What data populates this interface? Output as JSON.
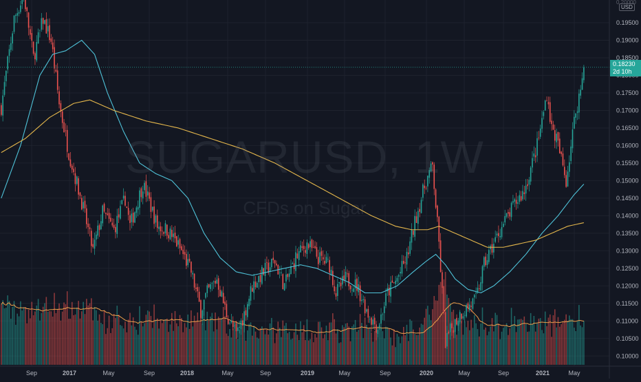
{
  "chart_data": {
    "type": "candlestick",
    "symbol": "SUGARUSD, 1W",
    "description": "CFDs on Sugar",
    "currency": "USD",
    "ylim": [
      0.0975,
      0.2005
    ],
    "y_ticks": [
      "0.19500",
      "0.19000",
      "0.18500",
      "0.18000",
      "0.17500",
      "0.17000",
      "0.16500",
      "0.16000",
      "0.15500",
      "0.15000",
      "0.14500",
      "0.14000",
      "0.13500",
      "0.13000",
      "0.12500",
      "0.12000",
      "0.11500",
      "0.11000",
      "0.10500",
      "0.10000"
    ],
    "y_top_partial": "0.20000",
    "x_ticks": [
      "Sep",
      "2017",
      "May",
      "Sep",
      "2018",
      "May",
      "Sep",
      "2019",
      "May",
      "Sep",
      "2020",
      "May",
      "Sep",
      "2021",
      "May"
    ],
    "last_price": "0.18230",
    "countdown": "2d 10h",
    "price_anchors": [
      [
        0,
        0.171
      ],
      [
        8,
        0.196
      ],
      [
        14,
        0.203
      ],
      [
        20,
        0.185
      ],
      [
        26,
        0.196
      ],
      [
        31,
        0.19
      ],
      [
        36,
        0.172
      ],
      [
        42,
        0.158
      ],
      [
        50,
        0.144
      ],
      [
        57,
        0.13
      ],
      [
        63,
        0.141
      ],
      [
        70,
        0.136
      ],
      [
        77,
        0.145
      ],
      [
        80,
        0.137
      ],
      [
        84,
        0.143
      ],
      [
        88,
        0.149
      ],
      [
        92,
        0.144
      ],
      [
        97,
        0.137
      ],
      [
        103,
        0.136
      ],
      [
        108,
        0.133
      ],
      [
        113,
        0.129
      ],
      [
        118,
        0.124
      ],
      [
        124,
        0.113
      ],
      [
        128,
        0.118
      ],
      [
        134,
        0.122
      ],
      [
        140,
        0.112
      ],
      [
        146,
        0.106
      ],
      [
        151,
        0.112
      ],
      [
        156,
        0.12
      ],
      [
        163,
        0.124
      ],
      [
        170,
        0.127
      ],
      [
        176,
        0.12
      ],
      [
        183,
        0.128
      ],
      [
        190,
        0.132
      ],
      [
        197,
        0.128
      ],
      [
        204,
        0.126
      ],
      [
        208,
        0.118
      ],
      [
        214,
        0.122
      ],
      [
        221,
        0.12
      ],
      [
        228,
        0.112
      ],
      [
        234,
        0.108
      ],
      [
        240,
        0.118
      ],
      [
        246,
        0.122
      ],
      [
        252,
        0.128
      ],
      [
        258,
        0.14
      ],
      [
        264,
        0.15
      ],
      [
        268,
        0.154
      ],
      [
        272,
        0.132
      ],
      [
        276,
        0.104
      ],
      [
        280,
        0.108
      ],
      [
        285,
        0.112
      ],
      [
        290,
        0.114
      ],
      [
        295,
        0.116
      ],
      [
        300,
        0.126
      ],
      [
        305,
        0.131
      ],
      [
        310,
        0.136
      ],
      [
        315,
        0.14
      ],
      [
        320,
        0.144
      ],
      [
        325,
        0.147
      ],
      [
        330,
        0.155
      ],
      [
        333,
        0.16
      ],
      [
        336,
        0.167
      ],
      [
        339,
        0.175
      ],
      [
        342,
        0.165
      ],
      [
        345,
        0.162
      ],
      [
        348,
        0.156
      ],
      [
        351,
        0.15
      ],
      [
        354,
        0.16
      ],
      [
        357,
        0.17
      ],
      [
        360,
        0.176
      ],
      [
        362,
        0.1823
      ]
    ],
    "ma_fast": {
      "color": "#4fc3d9",
      "values": [
        [
          0,
          0.145
        ],
        [
          12,
          0.16
        ],
        [
          24,
          0.18
        ],
        [
          32,
          0.186
        ],
        [
          40,
          0.187
        ],
        [
          50,
          0.19
        ],
        [
          58,
          0.186
        ],
        [
          66,
          0.175
        ],
        [
          76,
          0.164
        ],
        [
          86,
          0.155
        ],
        [
          96,
          0.152
        ],
        [
          106,
          0.15
        ],
        [
          116,
          0.145
        ],
        [
          126,
          0.135
        ],
        [
          136,
          0.128
        ],
        [
          146,
          0.124
        ],
        [
          156,
          0.123
        ],
        [
          166,
          0.124
        ],
        [
          176,
          0.125
        ],
        [
          186,
          0.126
        ],
        [
          196,
          0.125
        ],
        [
          206,
          0.123
        ],
        [
          216,
          0.121
        ],
        [
          226,
          0.118
        ],
        [
          236,
          0.118
        ],
        [
          246,
          0.12
        ],
        [
          256,
          0.124
        ],
        [
          264,
          0.127
        ],
        [
          270,
          0.129
        ],
        [
          276,
          0.126
        ],
        [
          282,
          0.122
        ],
        [
          290,
          0.119
        ],
        [
          298,
          0.118
        ],
        [
          306,
          0.12
        ],
        [
          316,
          0.124
        ],
        [
          326,
          0.129
        ],
        [
          336,
          0.135
        ],
        [
          346,
          0.14
        ],
        [
          356,
          0.146
        ],
        [
          362,
          0.149
        ]
      ]
    },
    "ma_slow": {
      "color": "#e6b84c",
      "values": [
        [
          0,
          0.158
        ],
        [
          15,
          0.162
        ],
        [
          30,
          0.168
        ],
        [
          45,
          0.172
        ],
        [
          55,
          0.173
        ],
        [
          70,
          0.17
        ],
        [
          90,
          0.167
        ],
        [
          110,
          0.165
        ],
        [
          130,
          0.162
        ],
        [
          150,
          0.159
        ],
        [
          170,
          0.155
        ],
        [
          190,
          0.15
        ],
        [
          210,
          0.145
        ],
        [
          230,
          0.14
        ],
        [
          245,
          0.137
        ],
        [
          255,
          0.136
        ],
        [
          265,
          0.136
        ],
        [
          272,
          0.137
        ],
        [
          282,
          0.135
        ],
        [
          292,
          0.133
        ],
        [
          302,
          0.131
        ],
        [
          312,
          0.131
        ],
        [
          322,
          0.132
        ],
        [
          332,
          0.133
        ],
        [
          342,
          0.135
        ],
        [
          352,
          0.137
        ],
        [
          362,
          0.138
        ]
      ]
    },
    "volume_ma_color": "#f0a04b",
    "up_color": "#26a69a",
    "down_color": "#ef5350"
  }
}
